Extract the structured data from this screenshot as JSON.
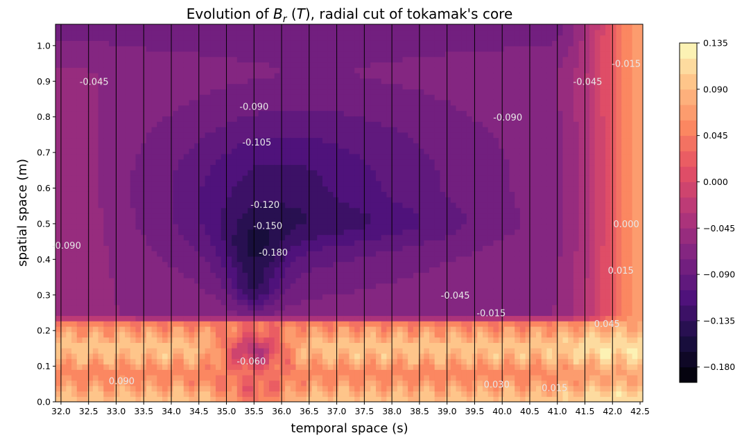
{
  "chart_data": {
    "type": "heatmap",
    "title": "Evolution of B_r (T), radial cut of tokamak's core",
    "title_parts": {
      "prefix": "Evolution of ",
      "symbol": "B",
      "subscript": "r",
      "open": " (",
      "unit": "T",
      "close": "), radial cut of tokamak's core"
    },
    "xlabel": "temporal space (s)",
    "ylabel": "spatial space (m)",
    "xlim": [
      31.9,
      42.55
    ],
    "ylim": [
      0.0,
      1.06
    ],
    "x_ticks": [
      "32.0",
      "32.5",
      "33.0",
      "33.5",
      "34.0",
      "34.5",
      "35.0",
      "35.5",
      "36.0",
      "36.5",
      "37.0",
      "37.5",
      "38.0",
      "38.5",
      "39.0",
      "39.5",
      "40.0",
      "40.5",
      "41.0",
      "41.5",
      "42.0",
      "42.5"
    ],
    "y_ticks": [
      "0.0",
      "0.1",
      "0.2",
      "0.3",
      "0.4",
      "0.5",
      "0.6",
      "0.7",
      "0.8",
      "0.9",
      "1.0"
    ],
    "vertical_lines_x": [
      32.0,
      32.5,
      33.0,
      33.5,
      34.0,
      34.5,
      35.0,
      35.5,
      36.0,
      36.5,
      37.0,
      37.5,
      38.0,
      38.5,
      39.0,
      39.5,
      40.0,
      40.5,
      41.0,
      41.5,
      42.0
    ],
    "colormap": "magma",
    "colorbar": {
      "vmin": -0.195,
      "vmax": 0.135,
      "levels": 22,
      "ticks": [
        "0.135",
        "0.090",
        "0.045",
        "0.000",
        "−0.045",
        "−0.090",
        "−0.135",
        "−0.180"
      ]
    },
    "contour_labels": [
      {
        "text": "-0.045",
        "x": 32.6,
        "y": 0.89
      },
      {
        "text": "-0.090",
        "x": 35.5,
        "y": 0.82
      },
      {
        "text": "-0.105",
        "x": 35.55,
        "y": 0.72
      },
      {
        "text": "-0.120",
        "x": 35.7,
        "y": 0.545
      },
      {
        "text": "-0.150",
        "x": 35.75,
        "y": 0.485
      },
      {
        "text": "-0.180",
        "x": 35.85,
        "y": 0.41
      },
      {
        "text": "-0.090",
        "x": 32.1,
        "y": 0.43
      },
      {
        "text": "-0.090",
        "x": 40.1,
        "y": 0.79
      },
      {
        "text": "-0.045",
        "x": 41.55,
        "y": 0.89
      },
      {
        "text": "-0.015",
        "x": 42.25,
        "y": 0.94
      },
      {
        "text": "0.000",
        "x": 42.25,
        "y": 0.49
      },
      {
        "text": "0.015",
        "x": 42.15,
        "y": 0.36
      },
      {
        "text": "-0.045",
        "x": 39.15,
        "y": 0.29
      },
      {
        "text": "-0.015",
        "x": 39.8,
        "y": 0.24
      },
      {
        "text": "0.045",
        "x": 41.9,
        "y": 0.21
      },
      {
        "text": "-0.060",
        "x": 35.45,
        "y": 0.105
      },
      {
        "text": "0.090",
        "x": 33.1,
        "y": 0.05
      },
      {
        "text": "0.030",
        "x": 39.9,
        "y": 0.04
      },
      {
        "text": "0.015",
        "x": 40.95,
        "y": 0.03
      }
    ],
    "field_description_features": [
      {
        "kind": "deep_minimum",
        "x": 35.5,
        "y": 0.41,
        "value": -0.185
      },
      {
        "kind": "secondary_minimum",
        "x": 35.5,
        "y": 0.31,
        "value": -0.17
      },
      {
        "kind": "positive_band",
        "y_range": [
          0.0,
          0.23
        ],
        "value": 0.09
      },
      {
        "kind": "plateau",
        "x_range": [
          34.5,
          39.5
        ],
        "y_range": [
          0.45,
          0.68
        ],
        "value": -0.125
      }
    ]
  }
}
